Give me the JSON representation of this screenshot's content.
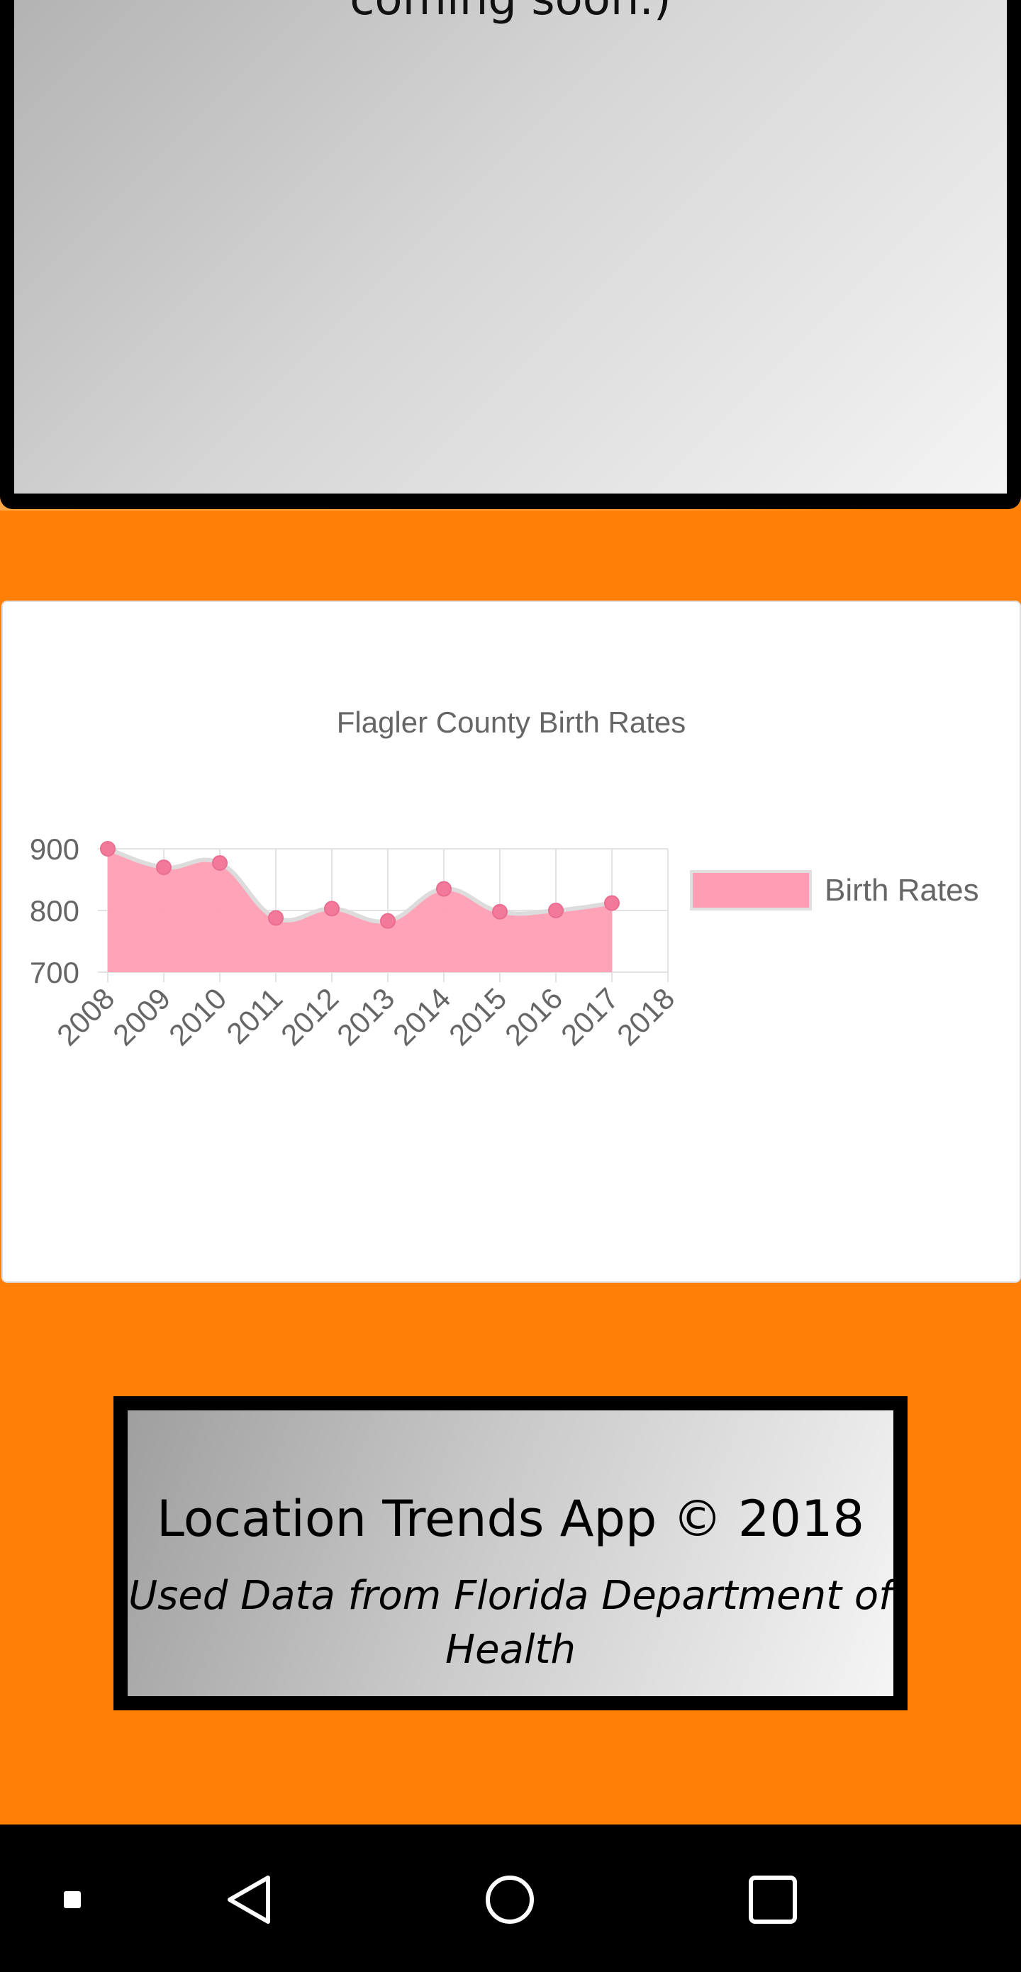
{
  "top_panel": {
    "text": "coming soon.)"
  },
  "chart_data": {
    "type": "area",
    "title": "Flagler County Birth Rates",
    "categories": [
      "2008",
      "2009",
      "2010",
      "2011",
      "2012",
      "2013",
      "2014",
      "2015",
      "2016",
      "2017",
      "2018"
    ],
    "series": [
      {
        "name": "Birth Rates",
        "values": [
          900,
          870,
          877,
          788,
          803,
          783,
          835,
          798,
          800,
          812,
          null
        ]
      }
    ],
    "y_ticks": [
      700,
      800,
      900
    ],
    "ylim": [
      700,
      900
    ],
    "legend_position": "right",
    "grid": true,
    "colors": {
      "fill": "#ff9eb5",
      "stroke": "#dcdcdc",
      "point": "#f3799a",
      "text": "#666666"
    }
  },
  "footer": {
    "title": "Location Trends App © 2018",
    "subtitle": "Used Data from Florida Department of Health"
  },
  "navbar": {
    "items": [
      {
        "icon": "small-square-icon"
      },
      {
        "icon": "back-triangle-icon"
      },
      {
        "icon": "home-circle-icon"
      },
      {
        "icon": "recents-square-icon"
      }
    ]
  }
}
